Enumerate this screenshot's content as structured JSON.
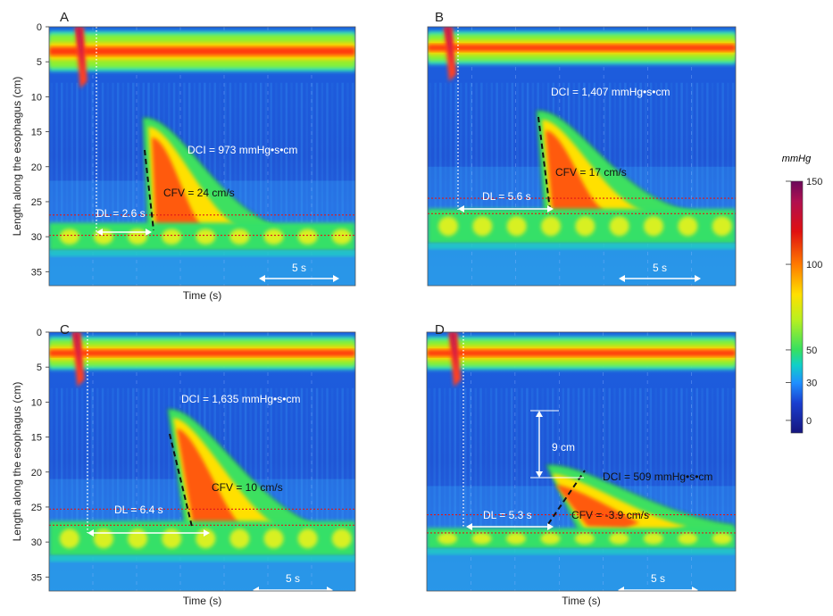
{
  "figure": {
    "colorbar": {
      "unit": "mmHg",
      "ticks": [
        "150",
        "100",
        "50",
        "30",
        "0"
      ],
      "tick_values": [
        150,
        100,
        50,
        30,
        0
      ],
      "range": [
        0,
        150
      ]
    }
  },
  "chart_data": [
    {
      "type": "heatmap",
      "panel": "A",
      "ylabel": "Length along the esophagus (cm)",
      "xlabel": "Time (s)",
      "ylim": [
        0,
        37
      ],
      "yticks": [
        "0",
        "5",
        "10",
        "15",
        "20",
        "25",
        "30",
        "35"
      ],
      "ytick_values": [
        0,
        5,
        10,
        15,
        20,
        25,
        30,
        35
      ],
      "annotations": {
        "dci": "DCI = 973 mmHg•s•cm",
        "cfv": "CFV = 24 cm/s",
        "dl": "DL = 2.6 s",
        "scale": "5 s"
      },
      "values": {
        "dci": 973,
        "cfv": 24,
        "dl": 2.6,
        "scale_s": 5
      },
      "swallow_t": 2.1,
      "ues_band": [
        1,
        6
      ],
      "bolus": [
        13,
        29
      ],
      "les_band": [
        28,
        32
      ],
      "redlines": [
        26.9,
        29.8
      ]
    },
    {
      "type": "heatmap",
      "panel": "B",
      "ylabel": "",
      "xlabel": "",
      "ylim": [
        0,
        37
      ],
      "yticks": [],
      "annotations": {
        "dci": "DCI = 1,407 mmHg•s•cm",
        "cfv": "CFV = 17 cm/s",
        "dl": "DL = 5.6 s",
        "scale": "5 s"
      },
      "values": {
        "dci": 1407,
        "cfv": 17,
        "dl": 5.6,
        "scale_s": 5
      },
      "swallow_t": 1.4,
      "ues_band": [
        1,
        5
      ],
      "bolus": [
        12,
        26
      ],
      "les_band": [
        26,
        31
      ],
      "redlines": [
        24.5,
        26.7
      ]
    },
    {
      "type": "heatmap",
      "panel": "C",
      "ylabel": "Length along the esophagus (cm)",
      "xlabel": "Time (s)",
      "ylim": [
        0,
        37
      ],
      "yticks": [
        "0",
        "5",
        "10",
        "15",
        "20",
        "25",
        "30",
        "35"
      ],
      "ytick_values": [
        0,
        5,
        10,
        15,
        20,
        25,
        30,
        35
      ],
      "annotations": {
        "dci": "DCI = 1,635 mmHg•s•cm",
        "cfv": "CFV = 10 cm/s",
        "dl": "DL = 6.4 s",
        "scale": "5 s"
      },
      "values": {
        "dci": 1635,
        "cfv": 10,
        "dl": 6.4,
        "scale_s": 5
      },
      "swallow_t": 1.9,
      "ues_band": [
        1,
        5
      ],
      "bolus": [
        11,
        28
      ],
      "les_band": [
        27,
        32
      ],
      "redlines": [
        25.3,
        27.6
      ]
    },
    {
      "type": "heatmap",
      "panel": "D",
      "ylabel": "",
      "xlabel": "Time (s)",
      "ylim": [
        0,
        37
      ],
      "yticks": [],
      "annotations": {
        "dci": "DCI = 509 mmHg•s•cm",
        "cfv": "CFV = -3.9 cm/s",
        "dl": "DL = 5.3 s",
        "gap": "9 cm",
        "scale": "5 s"
      },
      "values": {
        "dci": 509,
        "cfv": -3.9,
        "dl": 5.3,
        "gap_cm": 9,
        "scale_s": 5
      },
      "swallow_t": 1.8,
      "ues_band": [
        1,
        5
      ],
      "bolus": [
        19,
        27
      ],
      "les_band": [
        28,
        31
      ],
      "redlines": [
        26.1,
        28.7
      ]
    }
  ]
}
